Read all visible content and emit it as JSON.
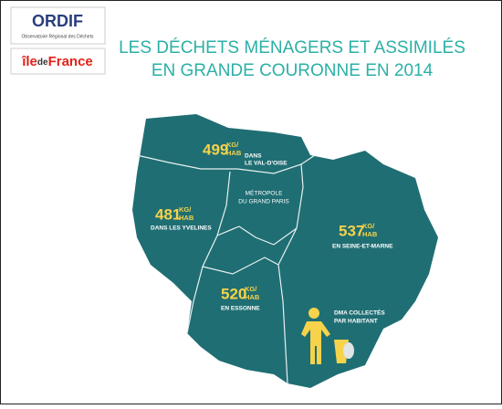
{
  "logos": {
    "ordif": {
      "name": "ORDIF",
      "subtitle": "Observatoire Régional des Déchets"
    },
    "region": [
      "île",
      "de",
      "France"
    ]
  },
  "header": {
    "title": [
      "LES DÉCHETS MÉNAGERS ET ASSIMILÉS",
      "EN GRANDE COURONNE EN 2014"
    ]
  },
  "unit": [
    "KG/",
    "HAB"
  ],
  "regions": [
    {
      "value": 499,
      "name": [
        "DANS",
        "LE VAL-D'OISE"
      ]
    },
    {
      "value": 481,
      "name": [
        "DANS LES YVELINES"
      ]
    },
    {
      "value": 537,
      "name": [
        "EN SEINE-ET-MARNE"
      ]
    },
    {
      "value": 520,
      "name": [
        "EN ESSONNE"
      ]
    }
  ],
  "metropole": [
    "MÉTROPOLE",
    "DU GRAND PARIS"
  ],
  "legend": [
    "DMA COLLECTÉS",
    "PAR HABITANT"
  ]
}
